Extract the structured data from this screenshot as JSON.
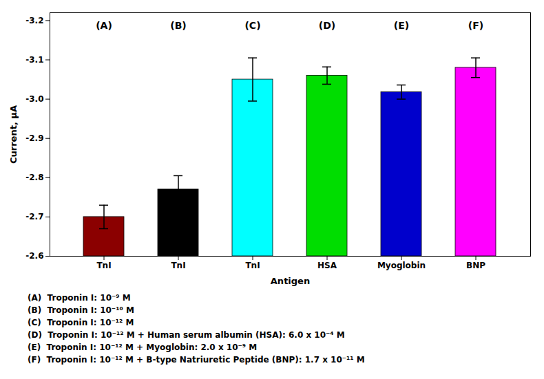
{
  "chart_data": {
    "type": "bar",
    "categories": [
      "TnI",
      "TnI",
      "TnI",
      "HSA",
      "Myoglobin",
      "BNP"
    ],
    "values": [
      -2.7,
      -2.77,
      -3.05,
      -3.06,
      -3.018,
      -3.08
    ],
    "errors": [
      0.03,
      0.035,
      0.055,
      0.022,
      0.018,
      0.025
    ],
    "colors": [
      "#8B0000",
      "#000000",
      "#00FFFF",
      "#00DD00",
      "#0000CC",
      "#FF00FF"
    ],
    "annotations": [
      "(A)",
      "(B)",
      "(C)",
      "(D)",
      "(E)",
      "(F)"
    ],
    "xlabel": "Antigen",
    "ylabel": "Current, µA",
    "ylim": [
      -2.6,
      -3.22
    ],
    "yticks": [
      -3.2,
      -3.1,
      {
        "value": -3.0,
        "label": "-3.0"
      },
      -2.9,
      -2.8,
      -2.7,
      -2.6
    ],
    "grid": false,
    "caption": [
      "(A)  Troponin I: 10⁻⁹ M",
      "(B)  Troponin I: 10⁻¹⁰ M",
      "(C)  Troponin I: 10⁻¹² M",
      "(D)  Troponin I: 10⁻¹² M + Human serum albumin (HSA): 6.0 x 10⁻⁴ M",
      "(E)  Troponin I: 10⁻¹² M + Myoglobin: 2.0 x 10⁻⁹ M",
      "(F)  Troponin I: 10⁻¹² M + B-type Natriuretic Peptide (BNP): 1.7 x 10⁻¹¹ M"
    ]
  }
}
